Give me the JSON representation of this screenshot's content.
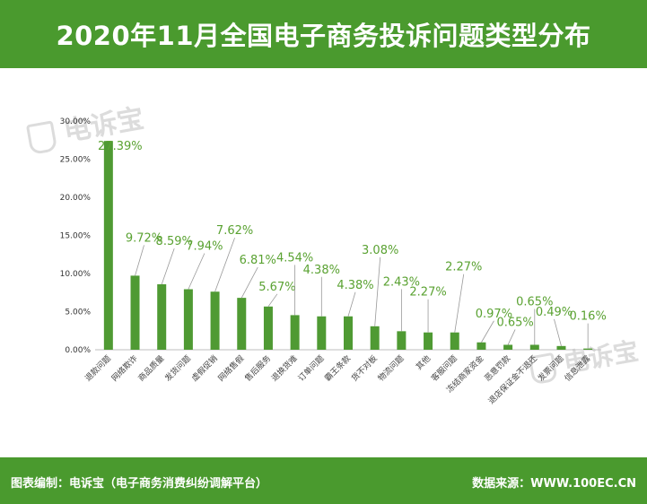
{
  "header": {
    "title": "2020年11月全国电子商务投诉问题类型分布"
  },
  "footer": {
    "left_text": "图表编制：电诉宝（电子商务消费纠纷调解平台）",
    "right_text": "数据来源：WWW.100EC.CN"
  },
  "watermark": {
    "text": "电诉宝"
  },
  "colors": {
    "brand": "#4a9a2e",
    "bar": "#4f9a33",
    "label": "#5aa232"
  },
  "chart_data": {
    "type": "bar",
    "title": "2020年11月全国电子商务投诉问题类型分布",
    "xlabel": "",
    "ylabel": "",
    "ylim": [
      0,
      30
    ],
    "yticks": [
      "0.00%",
      "5.00%",
      "10.00%",
      "15.00%",
      "20.00%",
      "25.00%",
      "30.00%"
    ],
    "categories": [
      "退款问题",
      "网络欺诈",
      "商品质量",
      "发货问题",
      "虚假促销",
      "网络售假",
      "售后服务",
      "退换货难",
      "订单问题",
      "霸王条款",
      "货不对板",
      "物流问题",
      "其他",
      "客服问题",
      "冻结商家资金",
      "恶意罚款",
      "退店保证金不退还",
      "发票问题",
      "信息泄露"
    ],
    "values": [
      27.39,
      9.72,
      8.59,
      7.94,
      7.62,
      6.81,
      5.67,
      4.54,
      4.38,
      4.38,
      3.08,
      2.43,
      2.27,
      2.27,
      0.97,
      0.65,
      0.65,
      0.49,
      0.16
    ],
    "value_labels": [
      "27.39%",
      "9.72%",
      "8.59%",
      "7.94%",
      "7.62%",
      "6.81%",
      "5.67%",
      "4.54%",
      "4.38%",
      "4.38%",
      "3.08%",
      "2.43%",
      "2.27%",
      "2.27%",
      "0.97%",
      "0.65%",
      "0.65%",
      "0.49%",
      "0.16%"
    ],
    "grid": false,
    "legend": "none"
  }
}
